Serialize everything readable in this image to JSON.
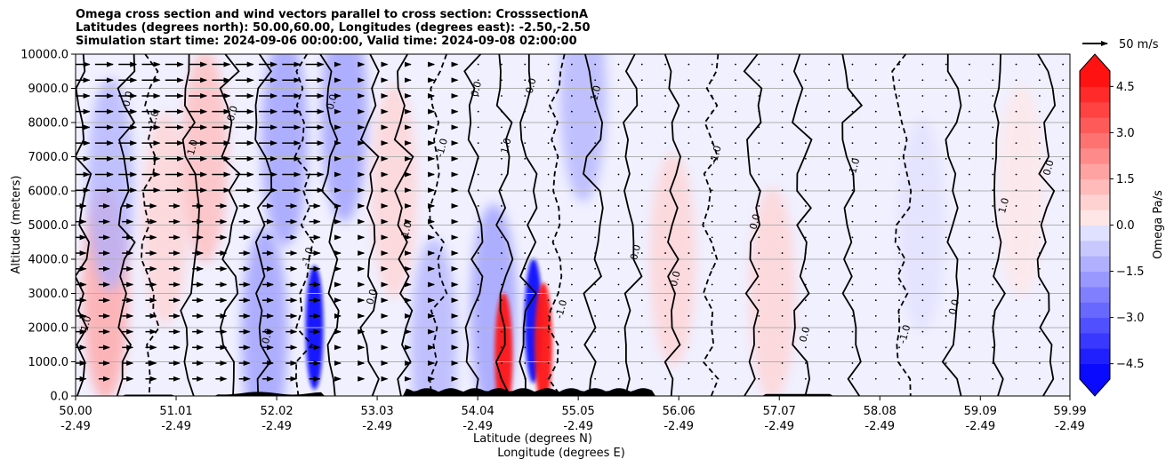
{
  "chart_data": {
    "type": "heatmap",
    "title_lines": [
      "Omega cross section and wind vectors parallel to cross section: CrosssectionA",
      "Latitudes (degrees north): 50.00,60.00, Longitudes (degrees east): -2.50,-2.50",
      "Simulation start time: 2024-09-06 00:00:00, Valid time: 2024-09-08 02:00:00"
    ],
    "ylabel": "Altitude (meters)",
    "xlabel_lat": "Latitude (degrees N)",
    "xlabel_lon": "Longitude (degrees E)",
    "ylim": [
      0,
      10000
    ],
    "y_ticks": [
      0,
      1000,
      2000,
      3000,
      4000,
      5000,
      6000,
      7000,
      8000,
      9000,
      10000
    ],
    "y_tick_labels": [
      "0.0",
      "1000.0",
      "2000.0",
      "3000.0",
      "4000.0",
      "5000.0",
      "6000.0",
      "7000.0",
      "8000.0",
      "9000.0",
      "10000.0"
    ],
    "xlim": [
      50.0,
      59.99
    ],
    "x_ticks": [
      50.0,
      51.01,
      52.02,
      53.03,
      54.04,
      55.05,
      56.06,
      57.07,
      58.08,
      59.09,
      59.99
    ],
    "x_tick_lat_labels": [
      "50.00",
      "51.01",
      "52.02",
      "53.03",
      "54.04",
      "55.05",
      "56.06",
      "57.07",
      "58.08",
      "59.09",
      "59.99"
    ],
    "x_tick_lon_labels": [
      "-2.49",
      "-2.49",
      "-2.49",
      "-2.49",
      "-2.49",
      "-2.49",
      "-2.49",
      "-2.49",
      "-2.49",
      "-2.49",
      "-2.49"
    ],
    "grid": "horizontal",
    "colorbar": {
      "label": "Omega Pa/s",
      "range": [
        -5.0,
        5.0
      ],
      "extend": "both",
      "ticks": [
        -4.5,
        -3.0,
        -1.5,
        0.0,
        1.5,
        3.0,
        4.5
      ],
      "tick_labels": [
        "−4.5",
        "−3.0",
        "−1.5",
        "0.0",
        "1.5",
        "3.0",
        "4.5"
      ],
      "levels": [
        -5.0,
        -4.5,
        -4.0,
        -3.5,
        -3.0,
        -2.5,
        -2.0,
        -1.5,
        -1.0,
        -0.5,
        0.0,
        0.5,
        1.0,
        1.5,
        2.0,
        2.5,
        3.0,
        3.5,
        4.0,
        4.5,
        5.0
      ],
      "colors": [
        "#0a0aff",
        "#2020ff",
        "#3838ff",
        "#5050ff",
        "#6868ff",
        "#8080ff",
        "#9898ff",
        "#b0b0ff",
        "#c8c8ff",
        "#e0e0ff",
        "#ffe6e6",
        "#ffd2d2",
        "#ffbaba",
        "#ffa2a2",
        "#ff8a8a",
        "#ff7272",
        "#ff5a5a",
        "#ff4242",
        "#ff2a2a",
        "#ff1212"
      ]
    },
    "contour_levels": [
      -1.0,
      0.0,
      1.0
    ],
    "contour_labels": [
      "-1.0",
      "0.0",
      "1.0"
    ],
    "reference_vector": {
      "speed": 50,
      "label": "50 m/s"
    },
    "omega_bands": [
      {
        "lat": 50.3,
        "alt": 3000,
        "value": 1.6
      },
      {
        "lat": 50.35,
        "alt": 6200,
        "value": -1.4
      },
      {
        "lat": 50.9,
        "alt": 5200,
        "value": 0.9
      },
      {
        "lat": 51.3,
        "alt": 7000,
        "value": 1.1
      },
      {
        "lat": 51.9,
        "alt": 1800,
        "value": -1.9
      },
      {
        "lat": 52.1,
        "alt": 7500,
        "value": -1.7
      },
      {
        "lat": 52.4,
        "alt": 2000,
        "value": -4.8
      },
      {
        "lat": 52.7,
        "alt": 8200,
        "value": -1.9
      },
      {
        "lat": 53.2,
        "alt": 6000,
        "value": 0.8
      },
      {
        "lat": 53.6,
        "alt": 1500,
        "value": -1.2
      },
      {
        "lat": 54.2,
        "alt": 2500,
        "value": -1.6
      },
      {
        "lat": 54.3,
        "alt": 1200,
        "value": 4.8
      },
      {
        "lat": 54.6,
        "alt": 2200,
        "value": -4.8
      },
      {
        "lat": 54.7,
        "alt": 1500,
        "value": 4.9
      },
      {
        "lat": 55.1,
        "alt": 8800,
        "value": -1.1
      },
      {
        "lat": 56.0,
        "alt": 4000,
        "value": 0.5
      },
      {
        "lat": 57.0,
        "alt": 3000,
        "value": 0.6
      },
      {
        "lat": 58.5,
        "alt": 5000,
        "value": -0.3
      },
      {
        "lat": 59.5,
        "alt": 6000,
        "value": 0.4
      }
    ]
  }
}
